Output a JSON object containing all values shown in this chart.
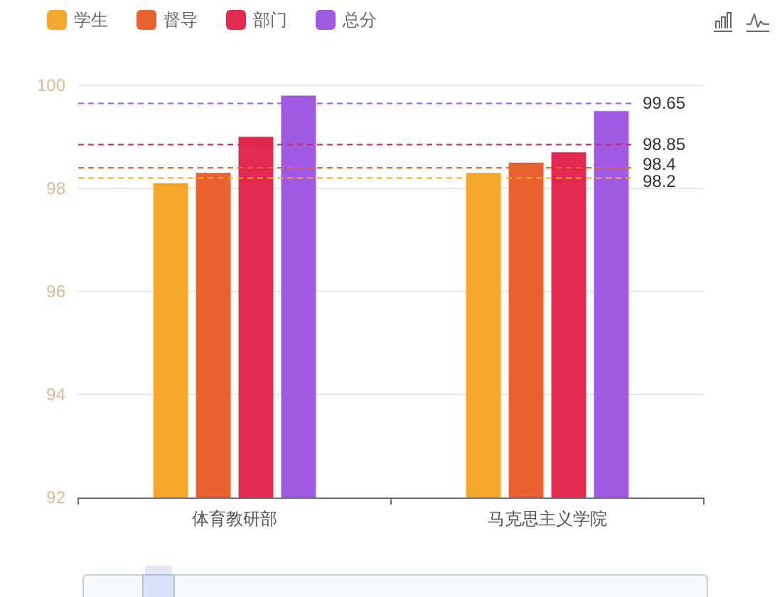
{
  "chart_data": {
    "type": "bar",
    "categories": [
      "体育教研部",
      "马克思主义学院"
    ],
    "series": [
      {
        "name": "学生",
        "color": "#f5a72c",
        "values": [
          98.1,
          98.3
        ]
      },
      {
        "name": "督导",
        "color": "#e8622f",
        "values": [
          98.3,
          98.5
        ]
      },
      {
        "name": "部门",
        "color": "#e2284f",
        "values": [
          99.0,
          98.7
        ]
      },
      {
        "name": "总分",
        "color": "#a05be2",
        "values": [
          99.8,
          99.5
        ]
      }
    ],
    "ylim": [
      92,
      100
    ],
    "yticks": [
      92,
      94,
      96,
      98,
      100
    ],
    "grid": "y",
    "legend": "top left",
    "ref_lines": [
      {
        "axis": "y",
        "value": 98.2,
        "label": "98.2",
        "color": "#f5a72c",
        "line_style": "dashed"
      },
      {
        "axis": "y",
        "value": 98.4,
        "label": "98.4",
        "color": "#e8622f",
        "line_style": "dashed"
      },
      {
        "axis": "y",
        "value": 98.85,
        "label": "98.85",
        "color": "#d4245a",
        "line_style": "dashed"
      },
      {
        "axis": "y",
        "value": 99.65,
        "label": "99.65",
        "color": "#a05be2",
        "line_style": "dashed"
      }
    ]
  }
}
